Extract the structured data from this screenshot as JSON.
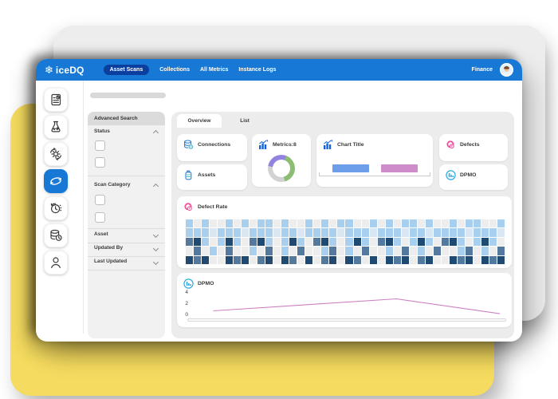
{
  "brand": {
    "logo_text": "iceDQ",
    "header_blue": "#1778D6",
    "active_pill_blue": "#0A3F9F",
    "accent_yellow": "#F5DB5F"
  },
  "topnav": {
    "items": [
      {
        "label": "Asset Scans",
        "active": true
      },
      {
        "label": "Collections",
        "active": false
      },
      {
        "label": "All Metrics",
        "active": false
      },
      {
        "label": "Instance Logs",
        "active": false
      }
    ],
    "workspace": "Finance"
  },
  "sidebar": {
    "items": [
      {
        "icon": "report-summary",
        "active": false
      },
      {
        "icon": "test-lab-flask",
        "active": false
      },
      {
        "icon": "process-settings-gear",
        "active": false
      },
      {
        "icon": "asset-scan-swirl",
        "active": true
      },
      {
        "icon": "schedule-clock",
        "active": false
      },
      {
        "icon": "data-store-database",
        "active": false
      },
      {
        "icon": "user-profile",
        "active": false
      }
    ]
  },
  "filters": {
    "title": "Advanced Search",
    "sections": [
      {
        "label": "Status",
        "state": "expanded",
        "checkbox_count": 2
      },
      {
        "label": "Scan Category",
        "state": "expanded",
        "checkbox_count": 2
      },
      {
        "label": "Asset",
        "state": "collapsed"
      },
      {
        "label": "Updated By",
        "state": "collapsed"
      },
      {
        "label": "Last Updated",
        "state": "collapsed"
      }
    ]
  },
  "tabs": [
    {
      "label": "Overview",
      "active": true
    },
    {
      "label": "List",
      "active": false
    }
  ],
  "cards": {
    "connections": "Connections",
    "metrics": "Metrics:8",
    "chart_title": "Chart Title",
    "defects": "Defects",
    "assets": "Assets",
    "dpmo_small": "DPMO",
    "defect_rate": "Defect Rate",
    "dpmo_large": "DPMO"
  },
  "chart_data": [
    {
      "type": "pie",
      "variant": "donut",
      "card": "Metrics:8",
      "start_angle": -80,
      "slices": [
        {
          "name": "segment-purple",
          "value": 28,
          "color": "#9283E0"
        },
        {
          "name": "segment-green",
          "value": 40,
          "color": "#8CBD72"
        },
        {
          "name": "segment-gray",
          "value": 32,
          "color": "#D2D2D2"
        }
      ]
    },
    {
      "type": "bar",
      "card": "Chart Title",
      "orientation": "vertical",
      "values": [
        1,
        1
      ],
      "colors": [
        "#6D9EEA",
        "#CF8CCB"
      ],
      "axis": "baseline-only"
    },
    {
      "type": "heatmap",
      "card": "Defect Rate",
      "cols": 40,
      "palette": [
        "#EDEDED",
        "#D9E7F5",
        "#A9CFEF",
        "#54799F",
        "#1F4A72"
      ],
      "rows": [
        "2020020202202002020220020202202002022002",
        "2221222122212212222122212221221222212221",
        "3420242034202420342024203420242034202420",
        "0302030020302030023020300203020300230203",
        "4340043403404304034043040434034004340434"
      ]
    },
    {
      "type": "line",
      "card": "DPMO",
      "yticks": [
        4,
        2,
        0
      ],
      "ymax": 4.6,
      "points": [
        {
          "x": 0.07,
          "y": 1.0
        },
        {
          "x": 0.655,
          "y": 3.3
        },
        {
          "x": 0.985,
          "y": 0.45
        }
      ],
      "color": "#CE7FC2",
      "grid": false
    }
  ]
}
